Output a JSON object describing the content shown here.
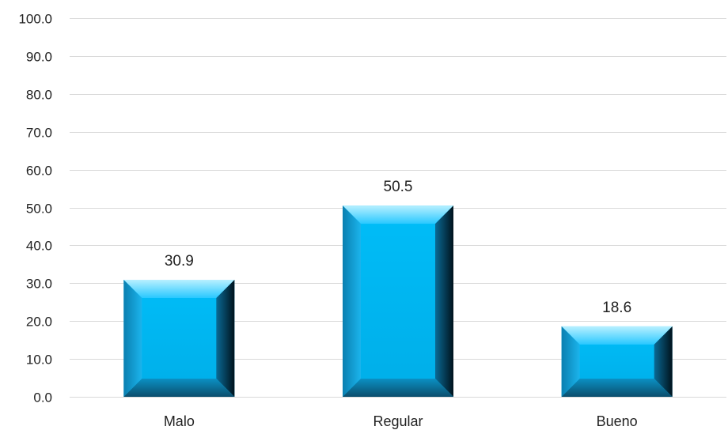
{
  "chart_data": {
    "type": "bar",
    "categories": [
      "Malo",
      "Regular",
      "Bueno"
    ],
    "values": [
      30.9,
      50.5,
      18.6
    ],
    "data_labels": [
      "30.9",
      "50.5",
      "18.6"
    ],
    "yticks": [
      "0.0",
      "10.0",
      "20.0",
      "30.0",
      "40.0",
      "50.0",
      "60.0",
      "70.0",
      "80.0",
      "90.0",
      "100.0"
    ],
    "title": "",
    "xlabel": "",
    "ylabel": "",
    "ylim": [
      0,
      100
    ],
    "grid": true,
    "legend": "none",
    "bar_color": "#00b8f5",
    "bar_highlight": "#7fe0ff",
    "bar_shadow": "#004a6a"
  }
}
